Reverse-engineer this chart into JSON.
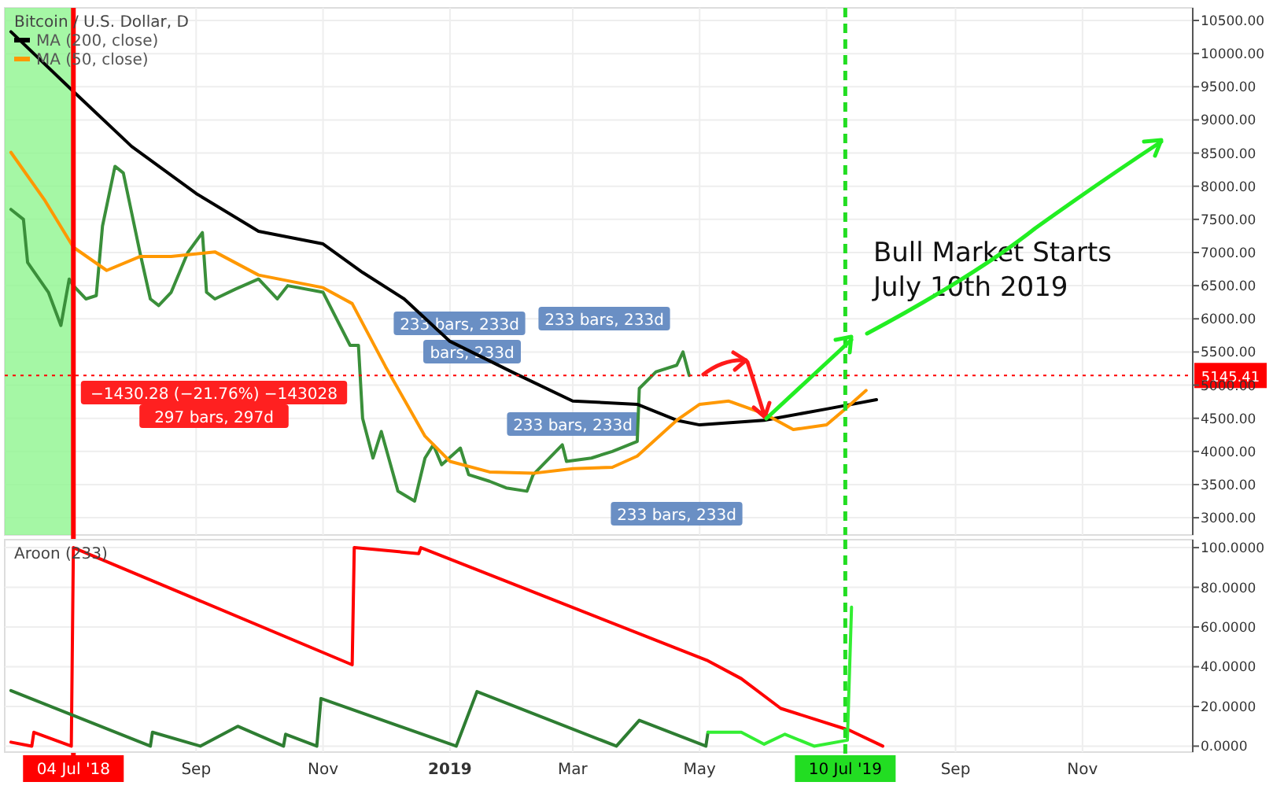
{
  "chart_data": [
    {
      "type": "line",
      "title": "Bitcoin / U.S. Dollar, D",
      "legend": "top left",
      "grid": true,
      "tick_labels": "y",
      "xlim": [
        "2018-06-01",
        "2019-12-24"
      ],
      "xticks": [
        {
          "value": "2018-09-01",
          "label": null
        },
        {
          "value": "2018-11-01",
          "label": null
        },
        {
          "value": "2019-01-01",
          "label": null
        },
        {
          "value": "2019-03-01",
          "label": null
        },
        {
          "value": "2019-05-01",
          "label": null
        },
        {
          "value": "2019-07-01",
          "label": null
        },
        {
          "value": "2019-09-01",
          "label": null
        },
        {
          "value": "2019-11-01",
          "label": null
        }
      ],
      "ylim": [
        2740,
        10690
      ],
      "yticks": [
        {
          "value": 3000,
          "label": "3000.00"
        },
        {
          "value": 3500,
          "label": "3500.00"
        },
        {
          "value": 4000,
          "label": "4000.00"
        },
        {
          "value": 4500,
          "label": "4500.00"
        },
        {
          "value": 5000,
          "label": "5000.00"
        },
        {
          "value": 5500,
          "label": "5500.00"
        },
        {
          "value": 6000,
          "label": "6000.00"
        },
        {
          "value": 6500,
          "label": "6500.00"
        },
        {
          "value": 7000,
          "label": "7000.00"
        },
        {
          "value": 7500,
          "label": "7500.00"
        },
        {
          "value": 8000,
          "label": "8000.00"
        },
        {
          "value": 8500,
          "label": "8500.00"
        },
        {
          "value": 9000,
          "label": "9000.00"
        },
        {
          "value": 9500,
          "label": "9500.00"
        },
        {
          "value": 10000,
          "label": "10000.00"
        },
        {
          "value": 10500,
          "label": "10500.00"
        }
      ],
      "series": [
        {
          "color": "#3a8f3a",
          "x": [
            "2018-06-04",
            "2018-06-10",
            "2018-06-12",
            "2018-06-22",
            "2018-06-28",
            "2018-07-02",
            "2018-07-04",
            "2018-07-10",
            "2018-07-15",
            "2018-07-18",
            "2018-07-24",
            "2018-07-28",
            "2018-08-01",
            "2018-08-05",
            "2018-08-10",
            "2018-08-14",
            "2018-08-20",
            "2018-08-28",
            "2018-09-04",
            "2018-09-06",
            "2018-09-10",
            "2018-09-20",
            "2018-10-01",
            "2018-10-10",
            "2018-10-15",
            "2018-11-01",
            "2018-11-14",
            "2018-11-18",
            "2018-11-20",
            "2018-11-25",
            "2018-11-29",
            "2018-12-07",
            "2018-12-15",
            "2018-12-20",
            "2018-12-24",
            "2018-12-28",
            "2019-01-06",
            "2019-01-10",
            "2019-01-20",
            "2019-01-28",
            "2019-02-07",
            "2019-02-10",
            "2019-02-24",
            "2019-02-26",
            "2019-03-10",
            "2019-03-20",
            "2019-04-01",
            "2019-04-02",
            "2019-04-10",
            "2019-04-20",
            "2019-04-23",
            "2019-04-26"
          ],
          "values": [
            7650,
            7500,
            6850,
            6400,
            5900,
            6600,
            6500,
            6300,
            6350,
            7400,
            8300,
            8200,
            7600,
            7000,
            6300,
            6200,
            6400,
            7000,
            7300,
            6400,
            6300,
            6450,
            6600,
            6300,
            6500,
            6400,
            5600,
            5600,
            4500,
            3900,
            4300,
            3400,
            3250,
            3900,
            4100,
            3800,
            4050,
            3650,
            3550,
            3450,
            3400,
            3650,
            4100,
            3850,
            3900,
            4000,
            4150,
            4950,
            5200,
            5300,
            5500,
            5145.41
          ]
        },
        {
          "name": "MA (200, close)",
          "color": "#000000",
          "x": [
            "2018-06-04",
            "2018-07-04",
            "2018-08-01",
            "2018-09-01",
            "2018-10-01",
            "2018-11-01",
            "2018-11-20",
            "2018-12-10",
            "2019-01-01",
            "2019-02-01",
            "2019-03-01",
            "2019-04-01",
            "2019-04-20",
            "2019-05-01",
            "2019-06-01",
            "2019-07-01",
            "2019-07-25"
          ],
          "values": [
            10330,
            9430,
            8600,
            7890,
            7320,
            7130,
            6700,
            6300,
            5660,
            5180,
            4760,
            4710,
            4470,
            4400,
            4470,
            4640,
            4780
          ]
        },
        {
          "name": "MA (50, close)",
          "color": "#ff9800",
          "x": [
            "2018-06-04",
            "2018-06-20",
            "2018-07-04",
            "2018-07-20",
            "2018-08-05",
            "2018-08-20",
            "2018-09-10",
            "2018-10-01",
            "2018-11-01",
            "2018-11-15",
            "2018-12-01",
            "2018-12-20",
            "2019-01-01",
            "2019-01-20",
            "2019-02-10",
            "2019-03-01",
            "2019-03-20",
            "2019-04-01",
            "2019-04-20",
            "2019-05-01",
            "2019-05-15",
            "2019-06-01",
            "2019-06-15",
            "2019-07-01",
            "2019-07-10",
            "2019-07-20"
          ],
          "values": [
            8510,
            7800,
            7080,
            6730,
            6940,
            6940,
            7010,
            6660,
            6470,
            6230,
            5280,
            4230,
            3850,
            3690,
            3670,
            3740,
            3760,
            3930,
            4470,
            4710,
            4760,
            4570,
            4330,
            4400,
            4640,
            4920
          ]
        }
      ],
      "bands": [
        {
          "axis": "x",
          "from": "2018-06-01",
          "to": "2018-07-04",
          "color": "#8ef58e"
        }
      ],
      "ref_lines": [
        {
          "axis": "x",
          "value": "2018-07-04",
          "label": "04 Jul '18",
          "color": "#ff0000",
          "line_style": "solid"
        },
        {
          "axis": "x",
          "value": "2019-07-10",
          "label": null,
          "color": "#22dd22",
          "line_style": "dashed"
        },
        {
          "axis": "y",
          "value": 5145.41,
          "label": "5145.41",
          "color": "#ff0000",
          "line_style": "dotted"
        }
      ],
      "annotations": [
        "233 bars, 233d",
        "bars, 233d",
        "233 bars, 233d",
        "233 bars, 233d",
        "233 bars, 233d",
        "−1430.28 (−21.76%) −143028",
        "297 bars, 297d",
        "Bull Market Starts",
        "July 10th 2019"
      ]
    },
    {
      "type": "line",
      "title": "Aroon (233)",
      "grid": true,
      "xlim": [
        "2018-06-01",
        "2019-12-24"
      ],
      "xticks": [
        {
          "value": "2018-09-01",
          "label": "Sep"
        },
        {
          "value": "2018-11-01",
          "label": "Nov"
        },
        {
          "value": "2019-01-01",
          "label": "2019"
        },
        {
          "value": "2019-03-01",
          "label": "Mar"
        },
        {
          "value": "2019-05-01",
          "label": "May"
        },
        {
          "value": "2019-09-01",
          "label": "Sep"
        },
        {
          "value": "2019-11-01",
          "label": "Nov"
        }
      ],
      "ylim": [
        -3,
        104
      ],
      "yticks": [
        {
          "value": 0,
          "label": "0.0000"
        },
        {
          "value": 20,
          "label": "20.0000"
        },
        {
          "value": 40,
          "label": "40.0000"
        },
        {
          "value": 60,
          "label": "60.0000"
        },
        {
          "value": 80,
          "label": "80.0000"
        },
        {
          "value": 100,
          "label": "100.0000"
        }
      ],
      "series": [
        {
          "color": "#ff0000",
          "x": [
            "2018-06-04",
            "2018-06-14",
            "2018-06-15",
            "2018-07-03",
            "2018-07-04",
            "2018-11-15",
            "2018-11-16",
            "2018-12-17",
            "2018-12-18",
            "2019-05-05",
            "2019-05-21",
            "2019-06-09",
            "2019-07-12",
            "2019-07-28"
          ],
          "values": [
            2,
            0,
            7,
            0,
            100,
            41,
            100,
            97,
            100,
            43,
            34,
            19,
            8,
            0
          ]
        },
        {
          "color": "#2e7d32",
          "x": [
            "2018-06-04",
            "2018-08-10",
            "2018-08-11",
            "2018-09-03",
            "2018-09-21",
            "2018-10-13",
            "2018-10-14",
            "2018-10-29",
            "2018-10-31",
            "2019-01-04",
            "2019-01-14",
            "2019-03-22",
            "2019-04-02",
            "2019-05-04",
            "2019-05-05"
          ],
          "values": [
            28,
            0,
            7,
            0,
            10,
            0,
            6,
            0,
            24,
            0,
            27.5,
            0,
            13,
            0,
            7
          ]
        },
        {
          "color": "#33ee33",
          "x": [
            "2019-05-05",
            "2019-05-21",
            "2019-06-01",
            "2019-06-11",
            "2019-06-25",
            "2019-07-11",
            "2019-07-13"
          ],
          "values": [
            7,
            7,
            1,
            6,
            0,
            3,
            70
          ]
        }
      ],
      "ref_lines": [
        {
          "axis": "x",
          "value": "2019-07-10",
          "label": "10 Jul '19",
          "color": "#22dd22",
          "line_style": "dashed"
        }
      ]
    }
  ]
}
